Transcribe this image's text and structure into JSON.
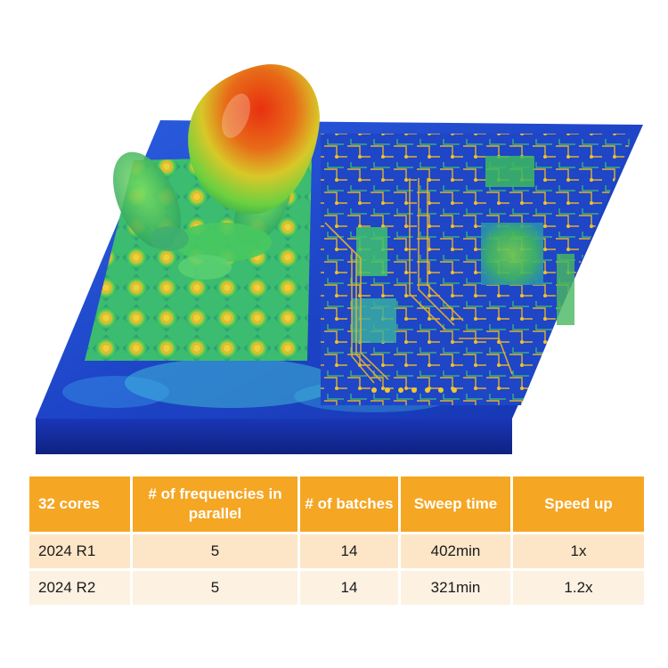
{
  "table": {
    "headers": [
      "32 cores",
      "# of frequencies in parallel",
      "# of batches",
      "Sweep time",
      "Speed up"
    ],
    "rows": [
      [
        "2024 R1",
        "5",
        "14",
        "402min",
        "1x"
      ],
      [
        "2024 R2",
        "5",
        "14",
        "321min",
        "1.2x"
      ]
    ]
  },
  "colors": {
    "header_bg": "#f5a623",
    "row_1_bg": "#fde6c8",
    "row_2_bg": "#fdf1e2",
    "board_base": "#1a3fc4"
  }
}
